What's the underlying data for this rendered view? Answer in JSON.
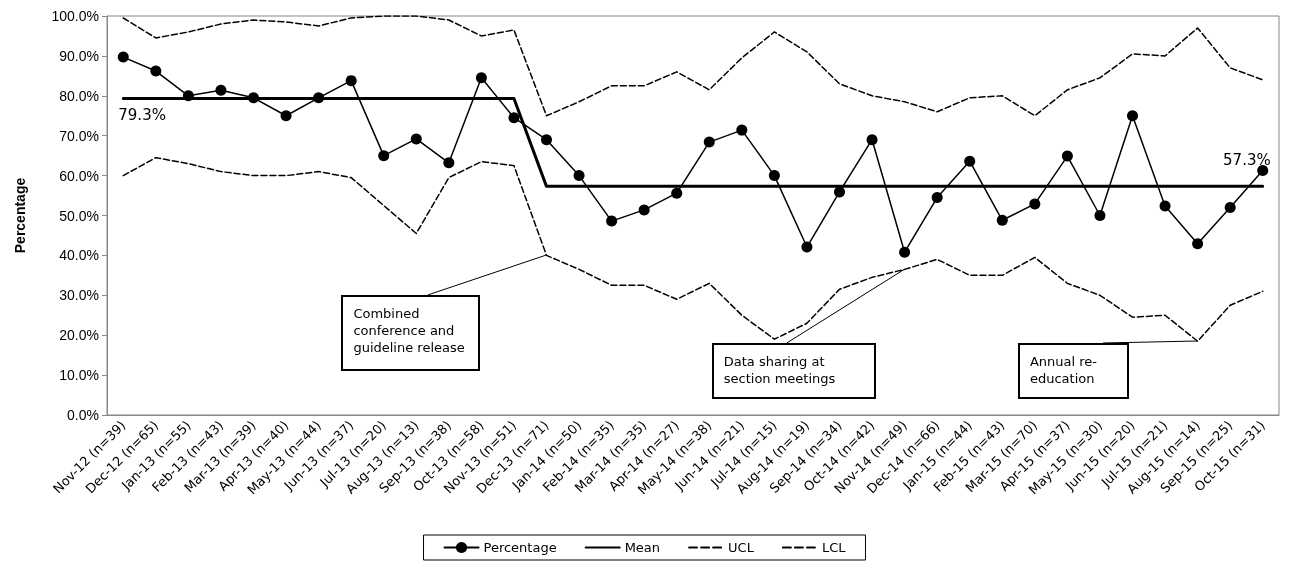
{
  "chart_data": {
    "type": "line",
    "ylabel": "Percentage",
    "categories": [
      "Nov-12 (n=39)",
      "Dec-12 (n=65)",
      "Jan-13 (n=55)",
      "Feb-13 (n=43)",
      "Mar-13 (n=39)",
      "Apr-13 (n=40)",
      "May-13 (n=44)",
      "Jun-13 (n=37)",
      "Jul-13 (n=20)",
      "Aug-13 (n=13)",
      "Sep-13 (n=38)",
      "Oct-13 (n=58)",
      "Nov-13 (n=51)",
      "Dec-13 (n=71)",
      "Jan-14 (n=50)",
      "Feb-14 (n=35)",
      "Mar-14 (n=35)",
      "Apr-14 (n=27)",
      "May-14 (n=38)",
      "Jun-14 (n=21)",
      "Jul-14 (n=15)",
      "Aug-14 (n=19)",
      "Sep-14 (n=34)",
      "Oct-14 (n=42)",
      "Nov-14 (n=49)",
      "Dec-14 (n=66)",
      "Jan-15 (n=44)",
      "Feb-15 (n=43)",
      "Mar-15 (n=70)",
      "Apr-15 (n=37)",
      "May-15 (n=30)",
      "Jun-15 (n=20)",
      "Jul-15 (n=21)",
      "Aug-15 (n=14)",
      "Sep-15 (n=25)",
      "Oct-15 (n=31)"
    ],
    "series": [
      {
        "name": "Percentage",
        "color": "#000000",
        "marker": "circle",
        "line_style": "solid",
        "values": [
          89.7,
          86.2,
          80,
          81.4,
          79.5,
          75,
          79.5,
          83.8,
          65,
          69.2,
          63.2,
          84.5,
          74.5,
          69,
          60,
          48.6,
          51.4,
          55.6,
          68.4,
          71.4,
          60,
          42.1,
          55.9,
          69,
          40.8,
          54.5,
          63.6,
          48.8,
          52.9,
          64.9,
          50,
          75,
          52.4,
          42.9,
          52,
          61.3
        ]
      },
      {
        "name": "Mean",
        "color": "#000000",
        "marker": "none",
        "line_style": "solid",
        "values": [
          79.3,
          79.3,
          79.3,
          79.3,
          79.3,
          79.3,
          79.3,
          79.3,
          79.3,
          79.3,
          79.3,
          79.3,
          79.3,
          57.3,
          57.3,
          57.3,
          57.3,
          57.3,
          57.3,
          57.3,
          57.3,
          57.3,
          57.3,
          57.3,
          57.3,
          57.3,
          57.3,
          57.3,
          57.3,
          57.3,
          57.3,
          57.3,
          57.3,
          57.3,
          57.3,
          57.3
        ],
        "value_labels": [
          "79.3%",
          null,
          null,
          null,
          null,
          null,
          null,
          null,
          null,
          null,
          null,
          null,
          null,
          null,
          null,
          null,
          null,
          null,
          null,
          null,
          null,
          null,
          null,
          null,
          null,
          null,
          null,
          null,
          null,
          null,
          null,
          null,
          null,
          null,
          null,
          "57.3%"
        ]
      },
      {
        "name": "UCL",
        "color": "#000000",
        "marker": "none",
        "line_style": "dashed",
        "values": [
          99.5,
          94.5,
          96,
          98,
          99,
          98.5,
          97.5,
          99.5,
          100,
          100,
          99,
          95,
          96.5,
          75,
          78.5,
          82.5,
          82.5,
          86,
          81.5,
          89.5,
          96,
          91,
          83,
          80,
          78.5,
          76,
          79.5,
          80,
          75,
          81.5,
          84.5,
          90.5,
          90,
          97,
          87,
          84
        ]
      },
      {
        "name": "LCL",
        "color": "#000000",
        "marker": "none",
        "line_style": "dashed",
        "values": [
          60,
          64.5,
          63,
          61,
          60,
          60,
          61,
          59.5,
          52.5,
          45.5,
          59.5,
          63.5,
          62.5,
          40,
          36.5,
          32.5,
          32.5,
          29,
          33,
          25,
          19,
          23,
          31.5,
          34.5,
          36.5,
          39,
          35,
          35,
          39.5,
          33,
          30,
          24.5,
          25,
          18.5,
          27.5,
          31
        ]
      }
    ],
    "ylim": [
      0,
      100
    ],
    "yticks": [
      {
        "value": 0,
        "label": "0.0%"
      },
      {
        "value": 10,
        "label": "10.0%"
      },
      {
        "value": 20,
        "label": "20.0%"
      },
      {
        "value": 30,
        "label": "30.0%"
      },
      {
        "value": 40,
        "label": "40.0%"
      },
      {
        "value": 50,
        "label": "50.0%"
      },
      {
        "value": 60,
        "label": "60.0%"
      },
      {
        "value": 70,
        "label": "70.0%"
      },
      {
        "value": 80,
        "label": "80.0%"
      },
      {
        "value": 90,
        "label": "90.0%"
      },
      {
        "value": 100,
        "label": "100.0%"
      }
    ],
    "grid": false,
    "legend": "bottom",
    "annotations": [
      {
        "text": "Combined conference and guideline release",
        "x": "Dec-13 (n=71)",
        "y": 40
      },
      {
        "text": "Data sharing at section meetings",
        "x": "Nov-14 (n=49)",
        "y": 36.5
      },
      {
        "text": "Annual re-education",
        "x": "Aug-15 (n=14)",
        "y": 18.5
      }
    ]
  }
}
